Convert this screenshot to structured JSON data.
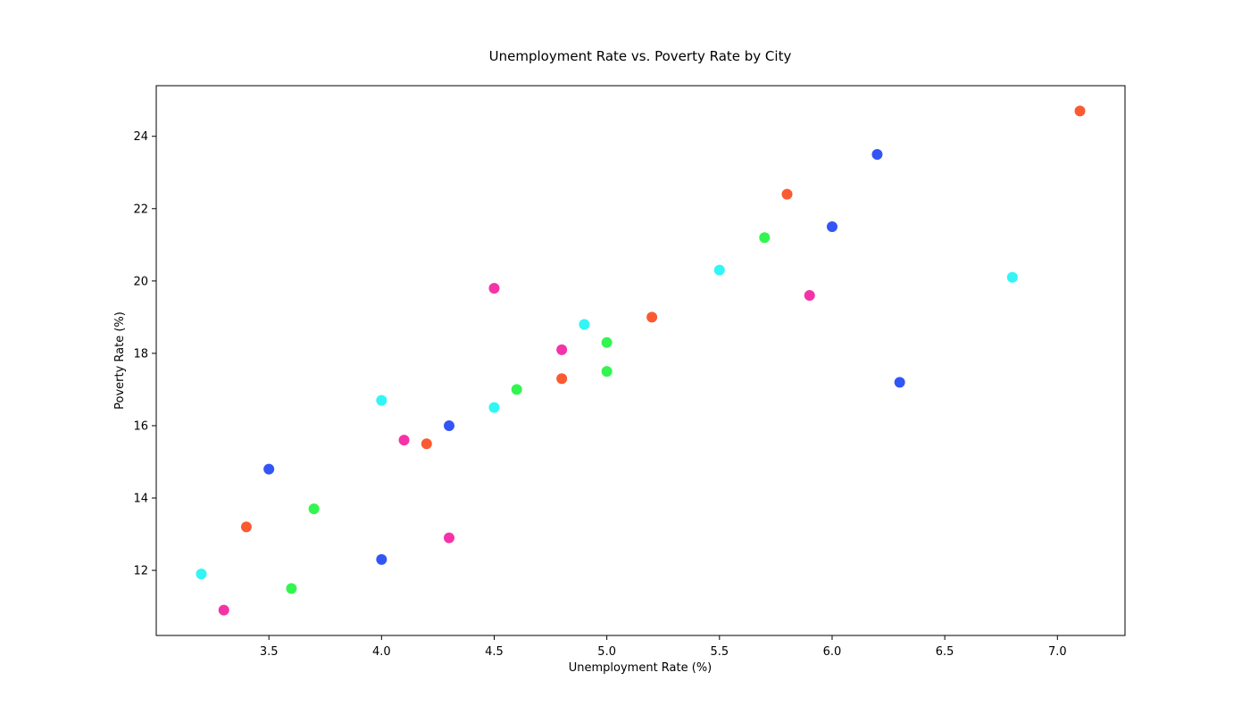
{
  "chart_data": {
    "type": "scatter",
    "title": "Unemployment Rate vs. Poverty Rate by City",
    "xlabel": "Unemployment Rate (%)",
    "ylabel": "Poverty Rate (%)",
    "xlim": [
      3.0,
      7.3
    ],
    "ylim": [
      10.2,
      25.4
    ],
    "x_ticks": [
      3.5,
      4.0,
      4.5,
      5.0,
      5.5,
      6.0,
      6.5,
      7.0
    ],
    "x_tick_labels": [
      "3.5",
      "4.0",
      "4.5",
      "5.0",
      "5.5",
      "6.0",
      "6.5",
      "7.0"
    ],
    "y_ticks": [
      12,
      14,
      16,
      18,
      20,
      22,
      24
    ],
    "y_tick_labels": [
      "12",
      "14",
      "16",
      "18",
      "20",
      "22",
      "24"
    ],
    "grid": false,
    "legend": "none",
    "points": [
      {
        "x": 7.1,
        "y": 24.7,
        "color": "#fa5a32"
      },
      {
        "x": 6.2,
        "y": 23.5,
        "color": "#3355f5"
      },
      {
        "x": 5.8,
        "y": 22.4,
        "color": "#fa5a32"
      },
      {
        "x": 6.0,
        "y": 21.5,
        "color": "#3355f5"
      },
      {
        "x": 5.7,
        "y": 21.2,
        "color": "#33f550"
      },
      {
        "x": 5.5,
        "y": 20.3,
        "color": "#33f5f5"
      },
      {
        "x": 6.8,
        "y": 20.1,
        "color": "#33f5f5"
      },
      {
        "x": 4.5,
        "y": 19.8,
        "color": "#f533a8"
      },
      {
        "x": 5.9,
        "y": 19.6,
        "color": "#f533a8"
      },
      {
        "x": 5.2,
        "y": 19.0,
        "color": "#fa5a32"
      },
      {
        "x": 4.9,
        "y": 18.8,
        "color": "#33f5f5"
      },
      {
        "x": 5.0,
        "y": 18.3,
        "color": "#33f550"
      },
      {
        "x": 4.8,
        "y": 18.1,
        "color": "#f533a8"
      },
      {
        "x": 5.0,
        "y": 17.5,
        "color": "#33f550"
      },
      {
        "x": 4.8,
        "y": 17.3,
        "color": "#fa5a32"
      },
      {
        "x": 6.3,
        "y": 17.2,
        "color": "#3355f5"
      },
      {
        "x": 4.6,
        "y": 17.0,
        "color": "#33f550"
      },
      {
        "x": 4.0,
        "y": 16.7,
        "color": "#33f5f5"
      },
      {
        "x": 4.5,
        "y": 16.5,
        "color": "#33f5f5"
      },
      {
        "x": 4.3,
        "y": 16.0,
        "color": "#3355f5"
      },
      {
        "x": 4.1,
        "y": 15.6,
        "color": "#f533a8"
      },
      {
        "x": 4.2,
        "y": 15.5,
        "color": "#fa5a32"
      },
      {
        "x": 3.5,
        "y": 14.8,
        "color": "#3355f5"
      },
      {
        "x": 3.7,
        "y": 13.7,
        "color": "#33f550"
      },
      {
        "x": 3.4,
        "y": 13.2,
        "color": "#fa5a32"
      },
      {
        "x": 4.3,
        "y": 12.9,
        "color": "#f533a8"
      },
      {
        "x": 4.0,
        "y": 12.3,
        "color": "#3355f5"
      },
      {
        "x": 3.2,
        "y": 11.9,
        "color": "#33f5f5"
      },
      {
        "x": 3.6,
        "y": 11.5,
        "color": "#33f550"
      },
      {
        "x": 3.3,
        "y": 10.9,
        "color": "#f533a8"
      }
    ]
  }
}
